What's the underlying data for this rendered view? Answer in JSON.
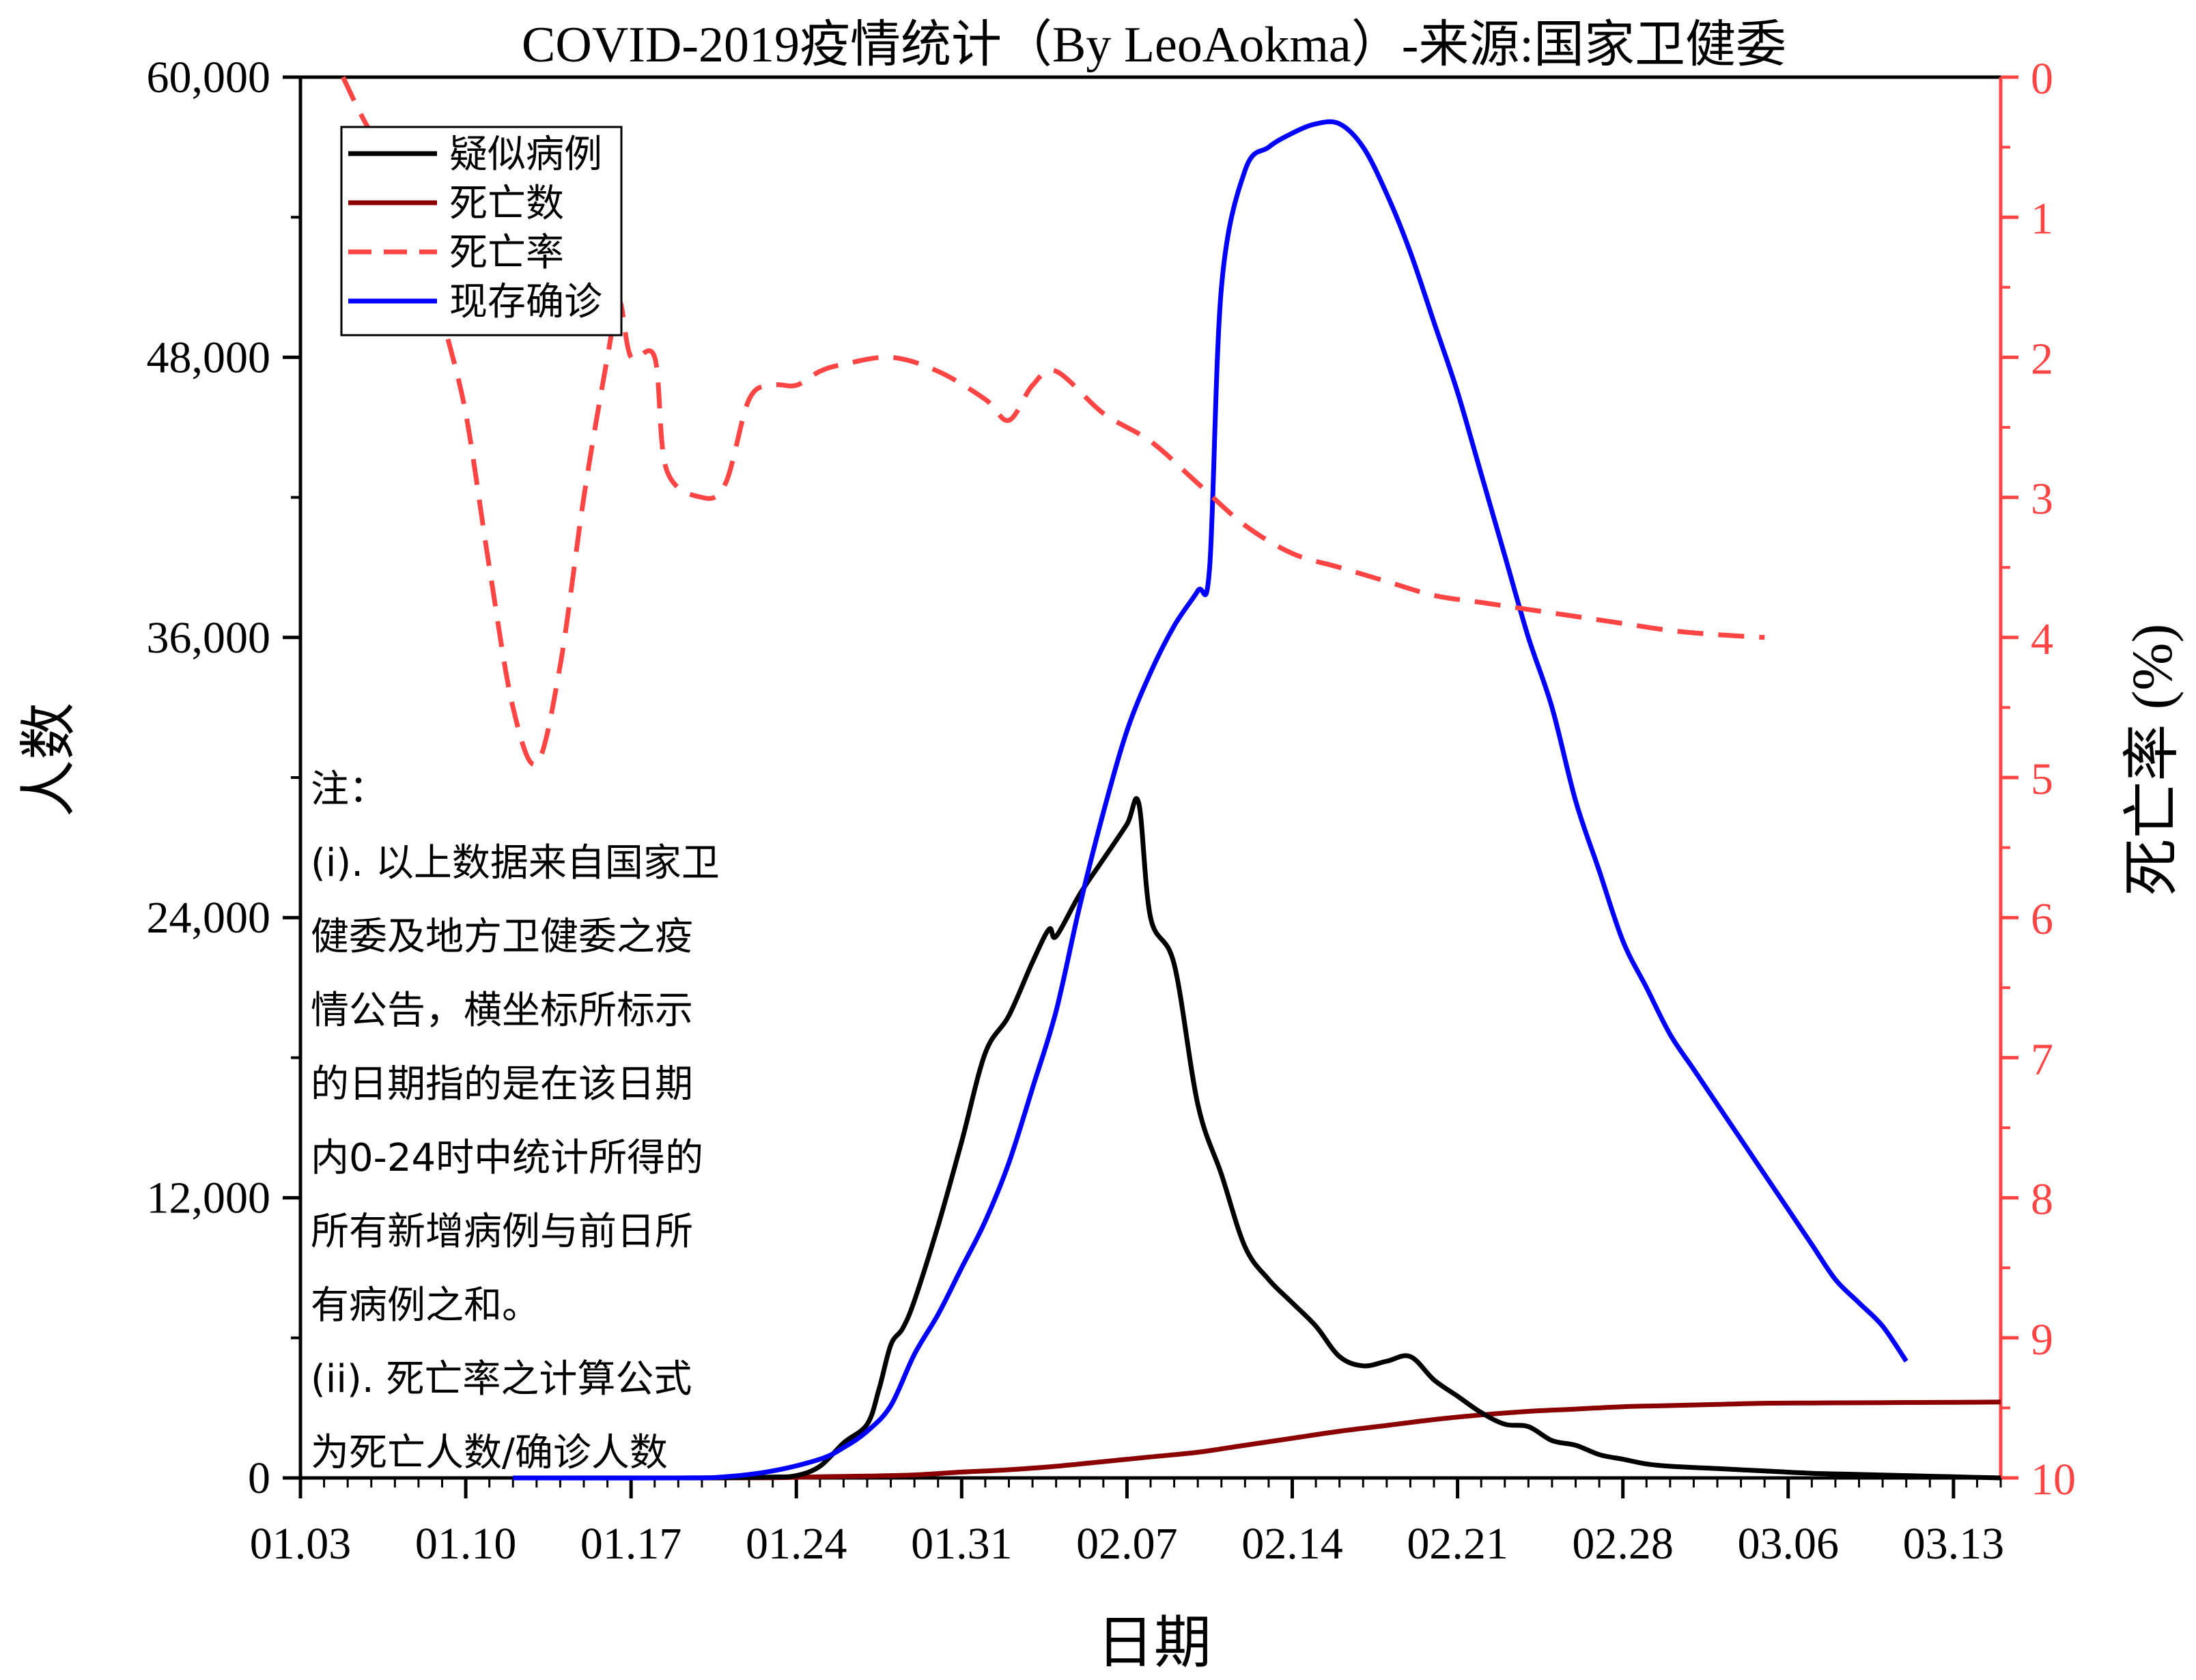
{
  "chart_data": {
    "type": "line",
    "title": "COVID-2019疫情统计（By LeoAokma）-来源:国家卫健委",
    "xlabel": "日期",
    "ylabel": "人数",
    "y2label": "死亡率 (%)",
    "x_ticks": [
      "01.03",
      "01.10",
      "01.17",
      "01.24",
      "01.31",
      "02.07",
      "02.14",
      "02.21",
      "02.28",
      "03.06",
      "03.13"
    ],
    "x_range": [
      0,
      72
    ],
    "ylim": [
      0,
      60000
    ],
    "y_ticks": [
      "0",
      "12,000",
      "24,000",
      "36,000",
      "48,000",
      "60,000"
    ],
    "y2lim": [
      10,
      0
    ],
    "y2_ticks": [
      "0",
      "1",
      "2",
      "3",
      "4",
      "5",
      "6",
      "7",
      "8",
      "9",
      "10"
    ],
    "y2_reversed": true,
    "legend_position": "top-left",
    "note": {
      "lines": [
        "注：",
        "(i). 以上数据来自国家卫",
        "健委及地方卫健委之疫",
        "情公告，横坐标所标示",
        "的日期指的是在该日期",
        "内0-24时中统计所得的",
        "所有新增病例与前日所",
        "有病例之和。",
        "(ii). 死亡率之计算公式",
        "为死亡人数/确诊人数"
      ]
    },
    "series": [
      {
        "name": "疑似病例",
        "axis": "left",
        "color": "#000000",
        "dash": "solid",
        "points": [
          [
            9,
            0
          ],
          [
            16,
            0
          ],
          [
            18,
            10
          ],
          [
            20,
            40
          ],
          [
            21,
            100
          ],
          [
            22,
            500
          ],
          [
            23,
            1500
          ],
          [
            24,
            2300
          ],
          [
            24.5,
            3800
          ],
          [
            25,
            5700
          ],
          [
            25.5,
            6400
          ],
          [
            26,
            7600
          ],
          [
            27,
            10800
          ],
          [
            28,
            14400
          ],
          [
            29,
            18200
          ],
          [
            30,
            19800
          ],
          [
            31,
            22100
          ],
          [
            31.7,
            23500
          ],
          [
            32,
            23200
          ],
          [
            33,
            25000
          ],
          [
            34,
            26500
          ],
          [
            35,
            28000
          ],
          [
            35.5,
            28900
          ],
          [
            36,
            24000
          ],
          [
            37,
            22000
          ],
          [
            38,
            16000
          ],
          [
            39,
            13000
          ],
          [
            40,
            9900
          ],
          [
            41,
            8500
          ],
          [
            42,
            7500
          ],
          [
            43,
            6500
          ],
          [
            44,
            5200
          ],
          [
            45,
            4800
          ],
          [
            46,
            5000
          ],
          [
            47,
            5200
          ],
          [
            48,
            4200
          ],
          [
            49,
            3500
          ],
          [
            50,
            2800
          ],
          [
            51,
            2300
          ],
          [
            52,
            2200
          ],
          [
            53,
            1600
          ],
          [
            54,
            1400
          ],
          [
            55,
            1000
          ],
          [
            56,
            800
          ],
          [
            57,
            600
          ],
          [
            58,
            500
          ],
          [
            60,
            400
          ],
          [
            62,
            300
          ],
          [
            64,
            200
          ],
          [
            66,
            150
          ],
          [
            68,
            100
          ],
          [
            70,
            50
          ],
          [
            72,
            0
          ]
        ]
      },
      {
        "name": "死亡数",
        "axis": "left",
        "color": "#8b0000",
        "dash": "solid",
        "points": [
          [
            9,
            0
          ],
          [
            16,
            0
          ],
          [
            20,
            10
          ],
          [
            22,
            50
          ],
          [
            24,
            80
          ],
          [
            26,
            130
          ],
          [
            28,
            250
          ],
          [
            30,
            350
          ],
          [
            32,
            500
          ],
          [
            34,
            700
          ],
          [
            36,
            900
          ],
          [
            38,
            1100
          ],
          [
            40,
            1400
          ],
          [
            42,
            1700
          ],
          [
            44,
            2000
          ],
          [
            46,
            2250
          ],
          [
            48,
            2500
          ],
          [
            50,
            2700
          ],
          [
            52,
            2850
          ],
          [
            54,
            2950
          ],
          [
            56,
            3050
          ],
          [
            58,
            3100
          ],
          [
            60,
            3150
          ],
          [
            62,
            3200
          ],
          [
            64,
            3210
          ],
          [
            66,
            3220
          ],
          [
            68,
            3230
          ],
          [
            70,
            3240
          ],
          [
            72,
            3250
          ]
        ]
      },
      {
        "name": "死亡率",
        "axis": "right",
        "color": "#ff4444",
        "dash": "dashed",
        "points": [
          [
            1.8,
            0
          ],
          [
            3,
            0.4
          ],
          [
            5,
            0.9
          ],
          [
            6,
            1.7
          ],
          [
            7,
            2.4
          ],
          [
            8,
            3.5
          ],
          [
            9,
            4.5
          ],
          [
            10,
            4.9
          ],
          [
            11,
            4.2
          ],
          [
            12,
            3.0
          ],
          [
            13,
            2.0
          ],
          [
            13.5,
            1.6
          ],
          [
            14,
            2.0
          ],
          [
            15,
            2.0
          ],
          [
            15.5,
            2.8
          ],
          [
            17,
            3.0
          ],
          [
            18,
            2.9
          ],
          [
            19,
            2.3
          ],
          [
            20,
            2.2
          ],
          [
            21,
            2.2
          ],
          [
            22,
            2.1
          ],
          [
            23,
            2.05
          ],
          [
            25,
            2.0
          ],
          [
            27,
            2.1
          ],
          [
            29,
            2.3
          ],
          [
            30,
            2.45
          ],
          [
            31,
            2.2
          ],
          [
            32,
            2.1
          ],
          [
            34,
            2.4
          ],
          [
            36,
            2.6
          ],
          [
            38,
            2.9
          ],
          [
            40,
            3.2
          ],
          [
            42,
            3.4
          ],
          [
            44,
            3.5
          ],
          [
            46,
            3.6
          ],
          [
            48,
            3.7
          ],
          [
            50,
            3.75
          ],
          [
            52,
            3.8
          ],
          [
            54,
            3.85
          ],
          [
            56,
            3.9
          ],
          [
            58,
            3.95
          ],
          [
            60,
            3.98
          ],
          [
            62,
            4.0
          ]
        ]
      },
      {
        "name": "现存确诊",
        "axis": "left",
        "color": "#0000ff",
        "dash": "solid",
        "points": [
          [
            9,
            0
          ],
          [
            16,
            0
          ],
          [
            18,
            50
          ],
          [
            20,
            300
          ],
          [
            22,
            800
          ],
          [
            23,
            1300
          ],
          [
            24,
            2000
          ],
          [
            25,
            3100
          ],
          [
            26,
            5300
          ],
          [
            27,
            7000
          ],
          [
            28,
            9000
          ],
          [
            29,
            11000
          ],
          [
            30,
            13500
          ],
          [
            31,
            16700
          ],
          [
            32,
            20000
          ],
          [
            33,
            24500
          ],
          [
            34,
            28500
          ],
          [
            35,
            32000
          ],
          [
            36,
            34500
          ],
          [
            37,
            36500
          ],
          [
            38,
            38000
          ],
          [
            38.5,
            39000
          ],
          [
            39,
            51000
          ],
          [
            40,
            56000
          ],
          [
            41,
            57000
          ],
          [
            42,
            57600
          ],
          [
            43,
            58000
          ],
          [
            44,
            58000
          ],
          [
            45,
            57000
          ],
          [
            46,
            55000
          ],
          [
            47,
            52500
          ],
          [
            48,
            49500
          ],
          [
            49,
            46500
          ],
          [
            50,
            43000
          ],
          [
            51,
            39500
          ],
          [
            52,
            36000
          ],
          [
            53,
            33000
          ],
          [
            54,
            29000
          ],
          [
            55,
            26000
          ],
          [
            56,
            23000
          ],
          [
            57,
            21000
          ],
          [
            58,
            19000
          ],
          [
            59,
            17500
          ],
          [
            60,
            16000
          ],
          [
            61,
            14500
          ],
          [
            62,
            13000
          ],
          [
            63,
            11500
          ],
          [
            64,
            10000
          ],
          [
            65,
            8500
          ],
          [
            66,
            7500
          ],
          [
            67,
            6500
          ],
          [
            68,
            5000
          ]
        ]
      }
    ]
  }
}
